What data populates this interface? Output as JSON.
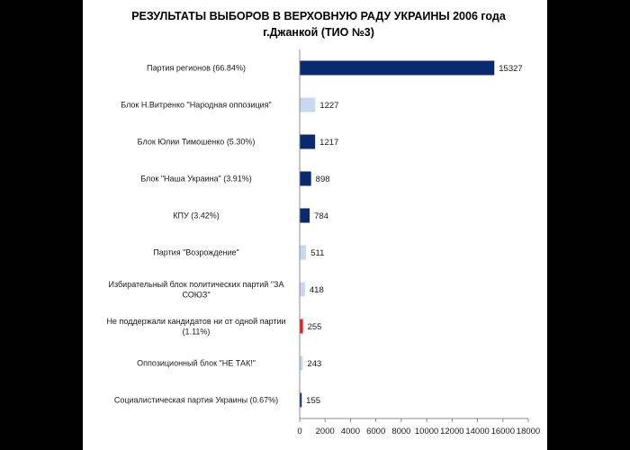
{
  "chart_data": {
    "type": "bar",
    "orientation": "horizontal",
    "title": "РЕЗУЛЬТАТЫ ВЫБОРОВ В ВЕРХОВНУЮ РАДУ УКРАИНЫ  2006 года",
    "subtitle": "г.Джанкой  (ТИО №3)",
    "xlim": [
      0,
      18000
    ],
    "x_ticks": [
      0,
      2000,
      4000,
      6000,
      8000,
      10000,
      12000,
      14000,
      16000,
      18000
    ],
    "grid": false,
    "legend": "none",
    "categories": [
      "Партия регионов (66.84%)",
      "Блок Н.Витренко \"Народная оппозиция\"",
      "Блок Юлии Тимошенко (5.30%)",
      "Блок \"Наша Украина\" (3.91%)",
      "КПУ  (3.42%)",
      "Партия \"Возрождение\"",
      "Избирательный блок политических партий \"ЗА СОЮЗ\"",
      "Не поддержали кандидатов ни от одной партии (1.11%)",
      "Оппозиционный блок \"НЕ ТАК!\"",
      "Социалистическая партия Украины  (0.67%)"
    ],
    "values": [
      15327,
      1227,
      1217,
      898,
      784,
      511,
      418,
      255,
      243,
      155
    ],
    "bar_colors": [
      "#0b2a6b",
      "#c6d9f1",
      "#0b2a6b",
      "#0b2a6b",
      "#0b2a6b",
      "#c6d9f1",
      "#c6d9f1",
      "#e02020",
      "#c6d9f1",
      "#0b2a6b"
    ]
  }
}
